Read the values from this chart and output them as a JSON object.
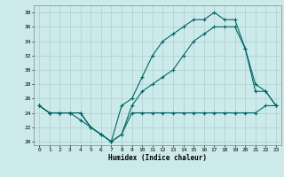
{
  "xlabel": "Humidex (Indice chaleur)",
  "background_color": "#cceaea",
  "grid_color": "#aad0d0",
  "line_color": "#006666",
  "xlim": [
    -0.5,
    23.5
  ],
  "ylim": [
    19.5,
    39.0
  ],
  "xticks": [
    0,
    1,
    2,
    3,
    4,
    5,
    6,
    7,
    8,
    9,
    10,
    11,
    12,
    13,
    14,
    15,
    16,
    17,
    18,
    19,
    20,
    21,
    22,
    23
  ],
  "yticks": [
    20,
    22,
    24,
    26,
    28,
    30,
    32,
    34,
    36,
    38
  ],
  "line1_x": [
    0,
    1,
    2,
    3,
    4,
    5,
    6,
    7,
    8,
    9,
    10,
    11,
    12,
    13,
    14,
    15,
    16,
    17,
    18,
    19,
    20,
    21,
    22,
    23
  ],
  "line1_y": [
    25,
    24,
    24,
    24,
    23,
    22,
    21,
    20,
    21,
    24,
    24,
    24,
    24,
    24,
    24,
    24,
    24,
    24,
    24,
    24,
    24,
    24,
    25,
    25
  ],
  "line2_x": [
    0,
    1,
    2,
    3,
    4,
    5,
    6,
    7,
    8,
    9,
    10,
    11,
    12,
    13,
    14,
    15,
    16,
    17,
    18,
    19,
    20,
    21,
    22,
    23
  ],
  "line2_y": [
    25,
    24,
    24,
    24,
    24,
    22,
    21,
    20,
    21,
    25,
    27,
    28,
    29,
    30,
    32,
    34,
    35,
    36,
    36,
    36,
    33,
    27,
    27,
    25
  ],
  "line3_x": [
    0,
    1,
    2,
    3,
    4,
    5,
    6,
    7,
    8,
    9,
    10,
    11,
    12,
    13,
    14,
    15,
    16,
    17,
    18,
    19,
    20,
    21,
    22,
    23
  ],
  "line3_y": [
    25,
    24,
    24,
    24,
    24,
    22,
    21,
    20,
    25,
    26,
    29,
    32,
    34,
    35,
    36,
    37,
    37,
    38,
    37,
    37,
    33,
    28,
    27,
    25
  ]
}
